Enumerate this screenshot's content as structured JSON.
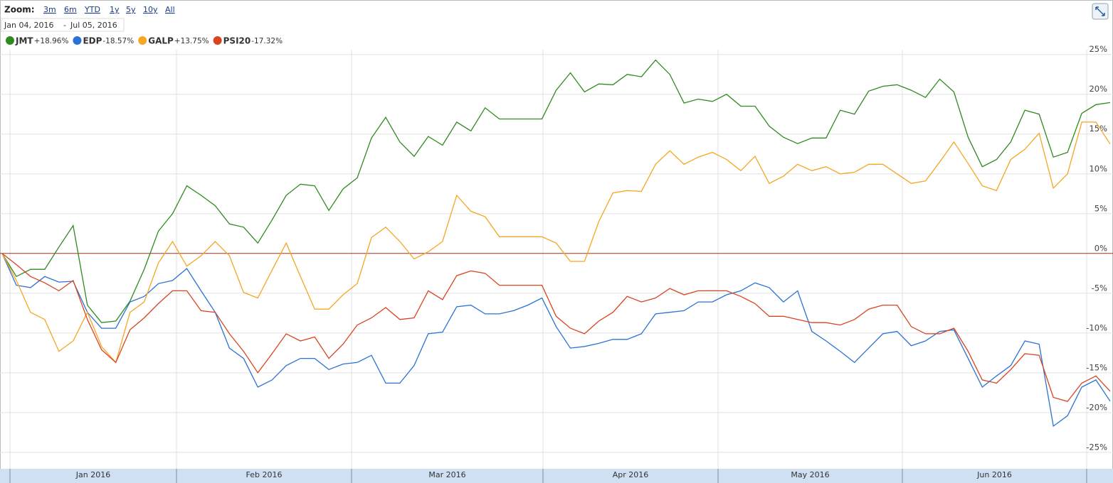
{
  "zoom_label": "Zoom:",
  "zoom_options": [
    "3m",
    "6m",
    "YTD",
    "1y",
    "5y",
    "10y",
    "All"
  ],
  "range_start": "Jan 04, 2016",
  "range_separator": "-",
  "range_end": "Jul 05, 2016",
  "chart_data": {
    "type": "line",
    "x_labels": [
      "Jan 2016",
      "Feb 2016",
      "Mar 2016",
      "Apr 2016",
      "May 2016",
      "Jun 2016"
    ],
    "ylim": [
      -26.8,
      25.6
    ],
    "yticks": [
      {
        "value": 25,
        "label": "25%"
      },
      {
        "value": 20,
        "label": "20%"
      },
      {
        "value": 15,
        "label": "15%"
      },
      {
        "value": 10,
        "label": "10%"
      },
      {
        "value": 5,
        "label": "5%"
      },
      {
        "value": 0,
        "label": "0%"
      },
      {
        "value": -5,
        "label": "-5%"
      },
      {
        "value": -10,
        "label": "-10%"
      },
      {
        "value": -15,
        "label": "-15%"
      },
      {
        "value": -20,
        "label": "-20%"
      },
      {
        "value": -25,
        "label": "-25%"
      }
    ],
    "grid": true,
    "zero_line_color": "#a03020",
    "series": [
      {
        "name": "JMT",
        "color": "#2e8b1e",
        "change_label": "+18.96%",
        "values": [
          0,
          -2.9,
          -2,
          -2,
          0.8,
          3.5,
          -6.5,
          -8.7,
          -8.5,
          -6,
          -2,
          2.8,
          5,
          8.5,
          7.3,
          6,
          3.7,
          3.3,
          1.3,
          4.2,
          7.3,
          8.7,
          8.5,
          5.4,
          8.1,
          9.5,
          14.5,
          17.1,
          14,
          12.2,
          14.7,
          13.6,
          16.5,
          15.4,
          18.3,
          16.9,
          16.9,
          16.9,
          16.9,
          20.5,
          22.7,
          20.3,
          21.3,
          21.2,
          22.5,
          22.2,
          24.3,
          22.5,
          18.9,
          19.4,
          19.1,
          20,
          18.5,
          18.5,
          16,
          14.6,
          13.8,
          14.5,
          14.5,
          18,
          17.5,
          20.4,
          21,
          21.2,
          20.5,
          19.6,
          21.9,
          20.3,
          14.6,
          10.9,
          11.8,
          14,
          18,
          17.5,
          12.1,
          12.7,
          17.6,
          18.7,
          18.96
        ]
      },
      {
        "name": "EDP",
        "color": "#2a72d6",
        "change_label": "-18.57%",
        "values": [
          0,
          -4,
          -4.3,
          -2.9,
          -3.6,
          -3.5,
          -7.4,
          -9.4,
          -9.4,
          -6.1,
          -5.4,
          -3.8,
          -3.4,
          -1.9,
          -4.7,
          -7.4,
          -11.9,
          -13.2,
          -16.8,
          -15.9,
          -14.1,
          -13.2,
          -13.2,
          -14.6,
          -13.9,
          -13.7,
          -12.8,
          -16.3,
          -16.3,
          -14.1,
          -10.1,
          -9.9,
          -6.7,
          -6.5,
          -7.6,
          -7.6,
          -7.2,
          -6.5,
          -5.6,
          -9.2,
          -11.9,
          -11.7,
          -11.3,
          -10.8,
          -10.8,
          -10.1,
          -7.6,
          -7.4,
          -7.2,
          -6.1,
          -6.1,
          -5.2,
          -4.7,
          -3.7,
          -4.3,
          -6.1,
          -4.7,
          -9.8,
          -11,
          -12.3,
          -13.7,
          -11.9,
          -10.1,
          -9.8,
          -11.6,
          -11,
          -9.8,
          -9.6,
          -13.2,
          -16.8,
          -15.4,
          -14.1,
          -11,
          -11.4,
          -21.7,
          -20.4,
          -16.8,
          -15.9,
          -18.57
        ]
      },
      {
        "name": "GALP",
        "color": "#f5a623",
        "change_label": "+13.75%",
        "values": [
          0,
          -3.4,
          -7.4,
          -8.3,
          -12.3,
          -11,
          -7.4,
          -11.7,
          -13.7,
          -7.4,
          -6.1,
          -1.2,
          1.5,
          -1.6,
          -0.3,
          1.5,
          -0.3,
          -4.9,
          -5.6,
          -2.1,
          1.3,
          -2.9,
          -7,
          -7,
          -5.2,
          -3.8,
          2,
          3.3,
          1.5,
          -0.7,
          0.2,
          1.5,
          7.3,
          5.3,
          4.6,
          2.1,
          2.1,
          2.1,
          2.1,
          1.3,
          -1,
          -1,
          4,
          7.6,
          7.9,
          7.8,
          11.2,
          12.9,
          11.2,
          12.1,
          12.7,
          11.8,
          10.4,
          12.2,
          8.8,
          9.7,
          11.2,
          10.4,
          10.9,
          10,
          10.2,
          11.2,
          11.2,
          10,
          8.8,
          9.1,
          11.5,
          14,
          11.3,
          8.5,
          7.9,
          11.8,
          13.1,
          15.1,
          8.2,
          10,
          16.5,
          16.5,
          13.75
        ]
      },
      {
        "name": "PSI20",
        "color": "#d9441f",
        "change_label": "-17.32%",
        "values": [
          0,
          -1.4,
          -2.9,
          -3.7,
          -4.7,
          -3.4,
          -8.3,
          -12.1,
          -13.7,
          -9.6,
          -8.1,
          -6.3,
          -4.7,
          -4.7,
          -7.2,
          -7.4,
          -10.1,
          -12.3,
          -15,
          -12.6,
          -10.1,
          -11,
          -10.5,
          -13.2,
          -11.4,
          -9,
          -8.1,
          -6.8,
          -8.3,
          -8.1,
          -4.7,
          -5.8,
          -2.8,
          -2.2,
          -2.5,
          -4,
          -4,
          -4,
          -4,
          -7.9,
          -9.4,
          -10.1,
          -8.5,
          -7.4,
          -5.4,
          -6.1,
          -5.6,
          -4.4,
          -5.2,
          -4.7,
          -4.7,
          -4.7,
          -5.4,
          -6.3,
          -7.9,
          -7.9,
          -8.3,
          -8.7,
          -8.7,
          -9,
          -8.3,
          -7,
          -6.5,
          -6.5,
          -9.2,
          -10.1,
          -10.1,
          -9.4,
          -12.3,
          -15.9,
          -16.3,
          -14.6,
          -12.6,
          -12.8,
          -18.1,
          -18.6,
          -16.3,
          -15.4,
          -17.32
        ]
      }
    ]
  }
}
